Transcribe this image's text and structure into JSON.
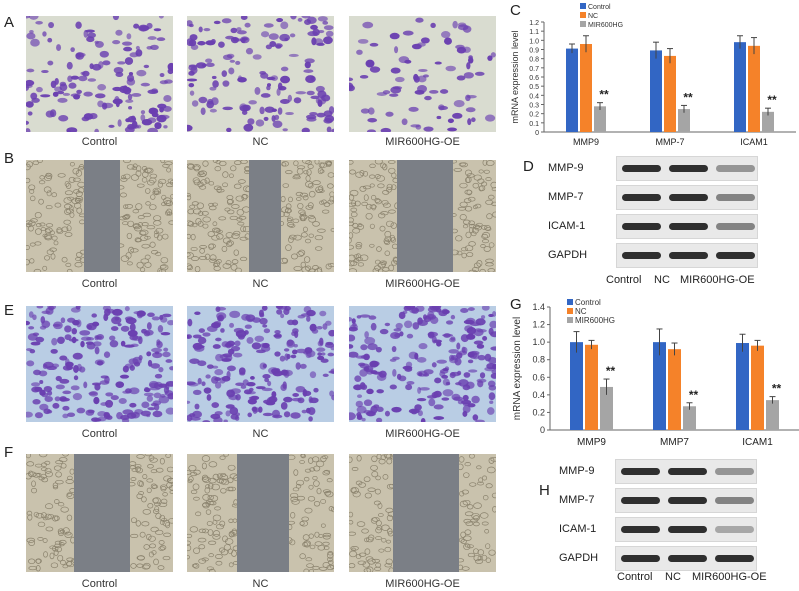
{
  "panels": {
    "A": {
      "label": "A",
      "captions": [
        "Control",
        "NC",
        "MIR600HG-OE"
      ]
    },
    "B": {
      "label": "B",
      "captions": [
        "Control",
        "NC",
        "MIR600HG-OE"
      ]
    },
    "E": {
      "label": "E",
      "captions": [
        "Control",
        "NC",
        "MIR600HG-OE"
      ]
    },
    "F": {
      "label": "F",
      "captions": [
        "Control",
        "NC",
        "MIR600HG-OE"
      ]
    },
    "D": {
      "label": "D",
      "rows": [
        "MMP-9",
        "MMP-7",
        "ICAM-1",
        "GAPDH"
      ],
      "lanes": [
        "Control",
        "NC",
        "MIR600HG-OE"
      ]
    },
    "H": {
      "label": "H",
      "rows": [
        "MMP-9",
        "MMP-7",
        "ICAM-1",
        "GAPDH"
      ],
      "lanes": [
        "Control",
        "NC",
        "MIR600HG-OE"
      ]
    }
  },
  "colors": {
    "control": "#3266c4",
    "nc": "#f58229",
    "mir600hg": "#a5a5a5",
    "stain": "#6a3fb0",
    "gap": "#7b7f86"
  },
  "chart_data": [
    {
      "panel": "C",
      "type": "bar",
      "ylabel": "mRNA expression level",
      "ylim": [
        0,
        1.2
      ],
      "ytick_step": 0.1,
      "categories": [
        "MMP9",
        "MMP-7",
        "ICAM1"
      ],
      "significance": [
        "**",
        "**",
        "**"
      ],
      "series": [
        {
          "name": "Control",
          "values": [
            0.91,
            0.89,
            0.98
          ],
          "errors": [
            0.05,
            0.09,
            0.07
          ]
        },
        {
          "name": "NC",
          "values": [
            0.96,
            0.83,
            0.94
          ],
          "errors": [
            0.09,
            0.08,
            0.09
          ]
        },
        {
          "name": "MIR600HG",
          "values": [
            0.28,
            0.25,
            0.22
          ],
          "errors": [
            0.04,
            0.04,
            0.04
          ]
        }
      ]
    },
    {
      "panel": "G",
      "type": "bar",
      "ylabel": "mRNA expression level",
      "ylim": [
        0,
        1.4
      ],
      "ytick_step": 0.2,
      "categories": [
        "MMP9",
        "MMP7",
        "ICAM1"
      ],
      "significance": [
        "**",
        "**",
        "**"
      ],
      "series": [
        {
          "name": "Control",
          "values": [
            1.0,
            1.0,
            0.99
          ],
          "errors": [
            0.12,
            0.15,
            0.1
          ]
        },
        {
          "name": "NC",
          "values": [
            0.97,
            0.92,
            0.96
          ],
          "errors": [
            0.05,
            0.07,
            0.06
          ]
        },
        {
          "name": "MIR600HG",
          "values": [
            0.49,
            0.27,
            0.34
          ],
          "errors": [
            0.09,
            0.04,
            0.04
          ]
        }
      ]
    }
  ]
}
